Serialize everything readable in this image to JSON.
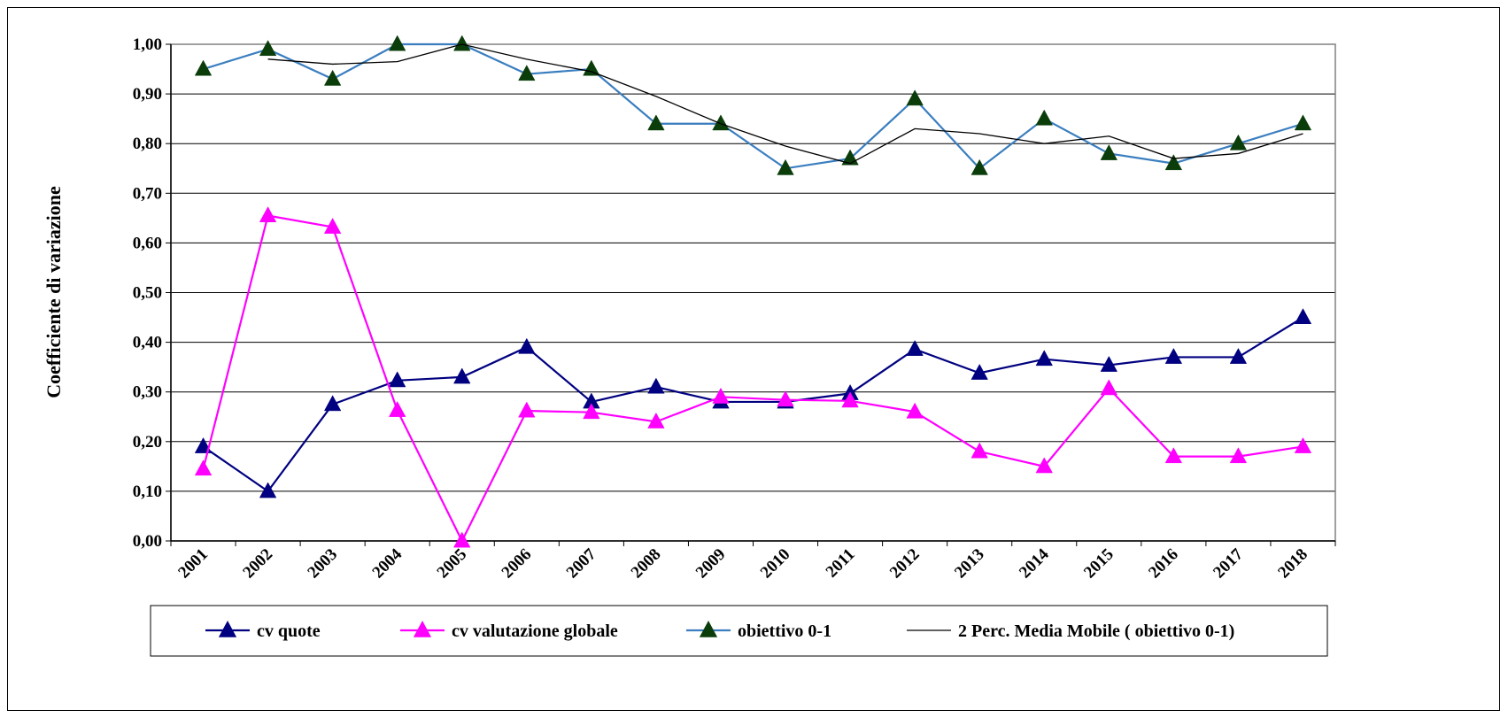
{
  "chart_data": {
    "type": "line",
    "ylabel": "Coefficiente di variazione",
    "xlabel": "",
    "ylim": [
      0,
      1
    ],
    "y_ticks": [
      "0,00",
      "0,10",
      "0,20",
      "0,30",
      "0,40",
      "0,50",
      "0,60",
      "0,70",
      "0,80",
      "0,90",
      "1,00"
    ],
    "categories": [
      "2001",
      "2002",
      "2003",
      "2004",
      "2005",
      "2006",
      "2007",
      "2008",
      "2009",
      "2010",
      "2011",
      "2012",
      "2013",
      "2014",
      "2015",
      "2016",
      "2017",
      "2018"
    ],
    "grid": true,
    "legend_position": "bottom",
    "series": [
      {
        "name": "cv quote",
        "color": "#000080",
        "marker": "triangle",
        "marker_color": "#000080",
        "values": [
          0.19,
          0.1,
          0.275,
          0.323,
          0.33,
          0.39,
          0.28,
          0.31,
          0.28,
          0.28,
          0.297,
          0.386,
          0.338,
          0.366,
          0.354,
          0.37,
          0.37,
          0.45
        ]
      },
      {
        "name": "cv valutazione globale",
        "color": "#FF00FF",
        "marker": "triangle",
        "marker_color": "#FF00FF",
        "values": [
          0.145,
          0.655,
          0.632,
          0.263,
          0.0,
          0.262,
          0.259,
          0.24,
          0.29,
          0.284,
          0.282,
          0.26,
          0.18,
          0.15,
          0.307,
          0.17,
          0.17,
          0.19
        ]
      },
      {
        "name": "obiettivo 0-1",
        "color": "#3A7EBF",
        "marker": "triangle",
        "marker_color": "#0B3D0B",
        "values": [
          0.95,
          0.99,
          0.93,
          1.0,
          1.0,
          0.94,
          0.95,
          0.84,
          0.84,
          0.75,
          0.77,
          0.89,
          0.75,
          0.85,
          0.78,
          0.76,
          0.8,
          0.84
        ]
      },
      {
        "name": "2 Perc. Media Mobile ( obiettivo 0-1)",
        "color": "#000000",
        "marker": "none",
        "values": [
          null,
          0.97,
          0.96,
          0.965,
          1.0,
          0.97,
          0.945,
          0.895,
          0.84,
          0.795,
          0.76,
          0.83,
          0.82,
          0.8,
          0.815,
          0.77,
          0.78,
          0.82
        ]
      }
    ]
  }
}
